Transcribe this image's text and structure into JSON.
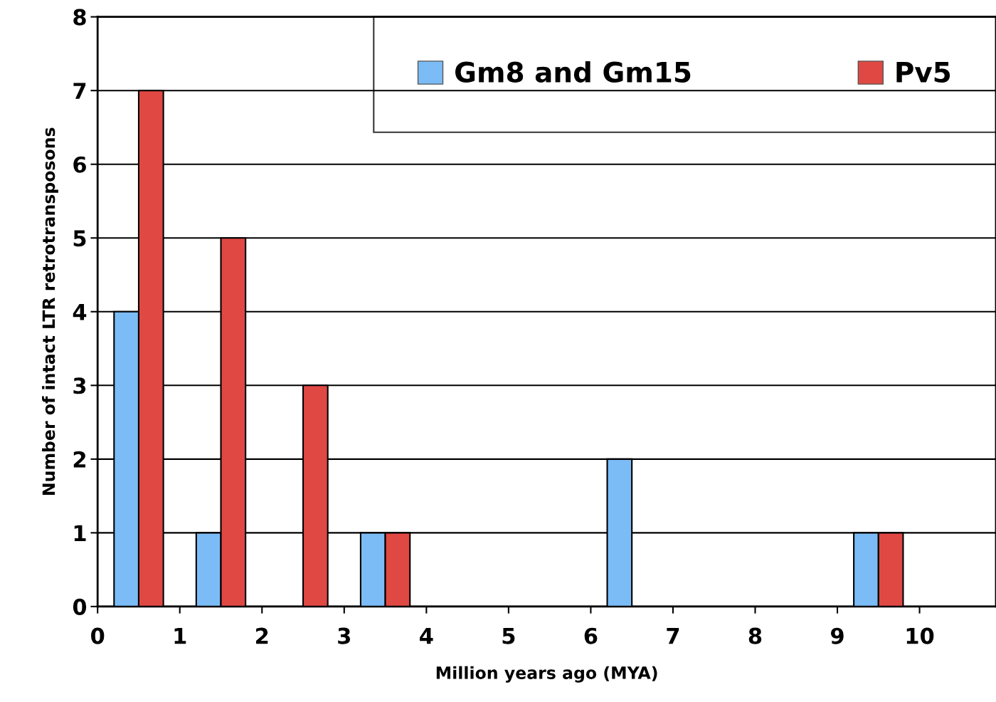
{
  "chart_data": {
    "type": "bar",
    "xlabel": "Million years ago (MYA)",
    "ylabel": "Number of intact LTR retrotransposons",
    "x": [
      0.5,
      1.5,
      2.5,
      3.5,
      4.5,
      5.5,
      6.5,
      7.5,
      8.5,
      9.5
    ],
    "series": [
      {
        "name": "Gm8 and Gm15",
        "color": "#7bbcf7",
        "values": [
          4,
          1,
          0,
          1,
          0,
          0,
          2,
          0,
          0,
          1
        ]
      },
      {
        "name": "Pv5",
        "color": "#e04843",
        "values": [
          7,
          5,
          3,
          1,
          0,
          0,
          0,
          0,
          0,
          1
        ]
      }
    ],
    "xlim": [
      0,
      10.93
    ],
    "xticks": [
      0,
      1,
      2,
      3,
      4,
      5,
      6,
      7,
      8,
      9,
      10
    ],
    "ylim": [
      0,
      8
    ],
    "yticks": [
      0,
      1,
      2,
      3,
      4,
      5,
      6,
      7,
      8
    ],
    "grid": "y",
    "legend": "top right"
  }
}
